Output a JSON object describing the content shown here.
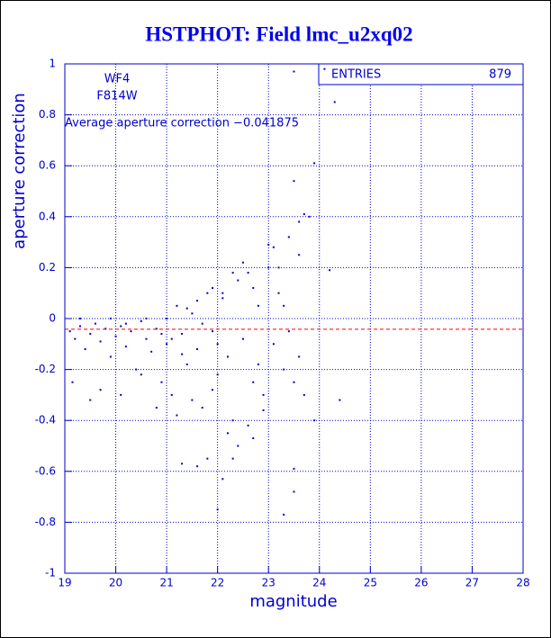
{
  "chart_data": {
    "type": "scatter",
    "title": "HSTPHOT: Field lmc_u2xq02",
    "x_label": "magnitude",
    "y_label": "aperture correction",
    "annotations": [
      "WF4",
      "F814W",
      "Average aperture correction −0.041875"
    ],
    "mean_line": -0.041875,
    "mean_color": "#ff0000",
    "stats": {
      "label": "ENTRIES",
      "value": 879
    },
    "color": "#0000cc",
    "grid": true,
    "xlim": [
      19,
      28
    ],
    "xticks": [
      19,
      20,
      21,
      22,
      23,
      24,
      25,
      26,
      27,
      28
    ],
    "ylim": [
      -1,
      1
    ],
    "yticks": [
      -1,
      -0.8,
      -0.6,
      -0.4,
      -0.2,
      0,
      0.2,
      0.4,
      0.6,
      0.8,
      1
    ],
    "x": [
      19.1,
      19.2,
      19.3,
      19.4,
      19.5,
      19.6,
      19.7,
      19.8,
      19.9,
      20.0,
      20.1,
      20.2,
      20.3,
      20.4,
      20.5,
      20.6,
      20.7,
      20.8,
      20.9,
      21.0,
      21.0,
      21.1,
      21.2,
      21.3,
      21.4,
      21.5,
      21.6,
      21.7,
      21.8,
      21.9,
      22.0,
      22.1,
      22.2,
      22.3,
      22.4,
      22.5,
      22.6,
      22.7,
      22.8,
      22.9,
      23.0,
      23.1,
      23.2,
      23.3,
      19.15,
      19.5,
      19.7,
      20.1,
      20.5,
      20.8,
      21.2,
      21.5,
      21.9,
      22.2,
      22.6,
      22.4,
      21.8,
      22.9,
      19.3,
      19.9,
      20.6,
      21.4,
      21.6,
      21.9,
      22.1,
      22.5,
      22.3,
      22.7,
      23.1,
      23.4,
      23.2,
      20.2,
      20.9,
      21.1,
      21.3,
      21.7,
      22.0,
      22.8,
      23.4,
      23.6,
      23.5,
      23.7,
      23.3,
      23.6,
      23.8,
      23.5,
      24.1,
      24.3,
      23.9,
      23.5,
      23.7,
      23.6,
      24.4,
      23.5,
      23.5,
      23.3,
      22.0,
      21.6,
      21.3,
      23.9,
      24.2,
      23.0,
      22.1,
      22.3,
      22.7
    ],
    "y": [
      -0.05,
      -0.08,
      -0.03,
      -0.12,
      -0.06,
      -0.02,
      -0.09,
      -0.04,
      -0.15,
      -0.07,
      -0.03,
      -0.11,
      -0.05,
      -0.2,
      -0.01,
      -0.08,
      -0.13,
      -0.04,
      -0.25,
      0.0,
      -0.1,
      -0.3,
      0.05,
      -0.06,
      -0.18,
      0.02,
      -0.12,
      -0.35,
      0.1,
      -0.05,
      -0.22,
      0.08,
      -0.15,
      -0.4,
      0.15,
      -0.08,
      0.18,
      -0.25,
      0.05,
      -0.3,
      0.2,
      -0.1,
      0.1,
      -0.2,
      -0.25,
      -0.32,
      -0.28,
      -0.3,
      -0.22,
      -0.35,
      -0.38,
      -0.32,
      -0.28,
      -0.45,
      -0.42,
      -0.5,
      -0.55,
      -0.36,
      0.0,
      0.0,
      0.0,
      0.04,
      0.07,
      0.12,
      0.1,
      0.22,
      0.18,
      0.12,
      0.28,
      0.32,
      0.2,
      -0.02,
      -0.06,
      -0.08,
      -0.14,
      -0.02,
      -0.1,
      -0.18,
      -0.05,
      -0.15,
      -0.25,
      -0.3,
      0.05,
      0.25,
      0.4,
      0.97,
      0.98,
      0.85,
      0.61,
      0.54,
      0.41,
      0.38,
      -0.32,
      -0.59,
      -0.68,
      -0.77,
      -0.75,
      -0.58,
      -0.57,
      -0.4,
      0.19,
      0.29,
      -0.63,
      -0.55,
      -0.47
    ]
  }
}
